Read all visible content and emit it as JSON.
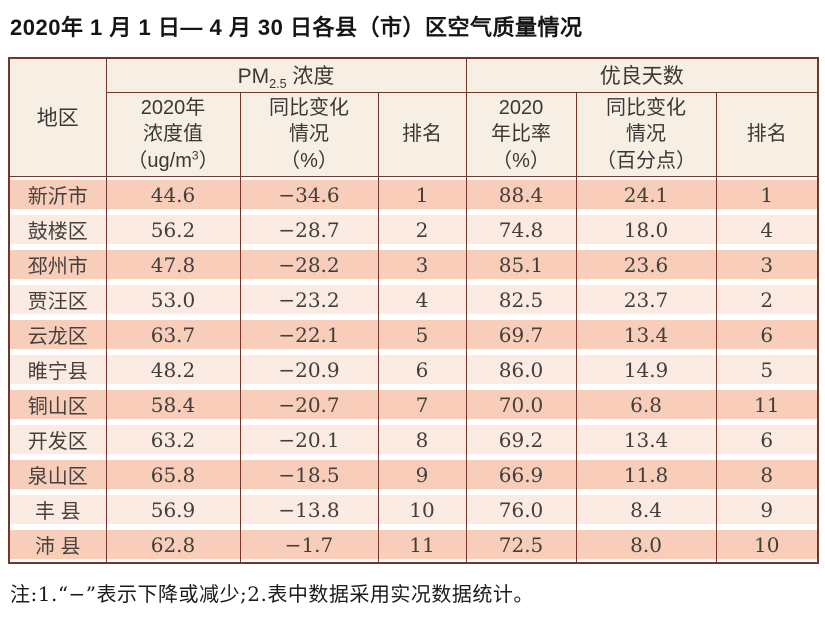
{
  "page": {
    "title": "2020年 1 月 1 日— 4 月 30 日各县（市）区空气质量情况",
    "footnote": "注:1.“−”表示下降或减少;2.表中数据采用实况数据统计。"
  },
  "colors": {
    "border": "#74362b",
    "header_bg": "#f7efe4",
    "row_dark": "#f8ceba",
    "row_light": "#fcebe2"
  },
  "table": {
    "header": {
      "region": "地区",
      "pm_group": {
        "prefix": "PM",
        "subscript": "2.5",
        "suffix": " 浓度"
      },
      "good_days_group": "优良天数",
      "conc": {
        "line1": "2020年",
        "line2": "浓度值",
        "line3_pre": "（ug/m",
        "line3_sup": "3",
        "line3_post": "）"
      },
      "conc_change": {
        "line1": "同比变化",
        "line2": "情况",
        "line3": "（%）"
      },
      "rank_pm": "排名",
      "ratio": {
        "line1": "2020",
        "line2": "年比率",
        "line3": "（%）"
      },
      "ratio_change": {
        "line1": "同比变化",
        "line2": "情况",
        "line3": "（百分点）"
      },
      "rank_days": "排名"
    },
    "rows": [
      {
        "region": "新沂市",
        "conc": "44.6",
        "conc_change": "−34.6",
        "conc_rank": "1",
        "ratio": "88.4",
        "ratio_change": "24.1",
        "ratio_rank": "1"
      },
      {
        "region": "鼓楼区",
        "conc": "56.2",
        "conc_change": "−28.7",
        "conc_rank": "2",
        "ratio": "74.8",
        "ratio_change": "18.0",
        "ratio_rank": "4"
      },
      {
        "region": "邳州市",
        "conc": "47.8",
        "conc_change": "−28.2",
        "conc_rank": "3",
        "ratio": "85.1",
        "ratio_change": "23.6",
        "ratio_rank": "3"
      },
      {
        "region": "贾汪区",
        "conc": "53.0",
        "conc_change": "−23.2",
        "conc_rank": "4",
        "ratio": "82.5",
        "ratio_change": "23.7",
        "ratio_rank": "2"
      },
      {
        "region": "云龙区",
        "conc": "63.7",
        "conc_change": "−22.1",
        "conc_rank": "5",
        "ratio": "69.7",
        "ratio_change": "13.4",
        "ratio_rank": "6"
      },
      {
        "region": "睢宁县",
        "conc": "48.2",
        "conc_change": "−20.9",
        "conc_rank": "6",
        "ratio": "86.0",
        "ratio_change": "14.9",
        "ratio_rank": "5"
      },
      {
        "region": "铜山区",
        "conc": "58.4",
        "conc_change": "−20.7",
        "conc_rank": "7",
        "ratio": "70.0",
        "ratio_change": "6.8",
        "ratio_rank": "11"
      },
      {
        "region": "开发区",
        "conc": "63.2",
        "conc_change": "−20.1",
        "conc_rank": "8",
        "ratio": "69.2",
        "ratio_change": "13.4",
        "ratio_rank": "6"
      },
      {
        "region": "泉山区",
        "conc": "65.8",
        "conc_change": "−18.5",
        "conc_rank": "9",
        "ratio": "66.9",
        "ratio_change": "11.8",
        "ratio_rank": "8"
      },
      {
        "region": "丰 县",
        "conc": "56.9",
        "conc_change": "−13.8",
        "conc_rank": "10",
        "ratio": "76.0",
        "ratio_change": "8.4",
        "ratio_rank": "9"
      },
      {
        "region": "沛 县",
        "conc": "62.8",
        "conc_change": "−1.7",
        "conc_rank": "11",
        "ratio": "72.5",
        "ratio_change": "8.0",
        "ratio_rank": "10"
      }
    ]
  }
}
